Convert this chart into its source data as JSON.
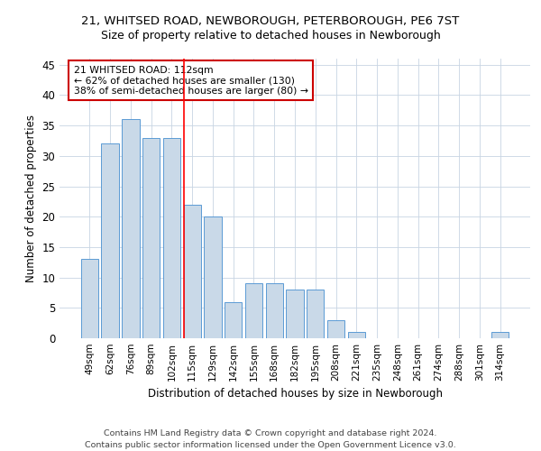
{
  "title1": "21, WHITSED ROAD, NEWBOROUGH, PETERBOROUGH, PE6 7ST",
  "title2": "Size of property relative to detached houses in Newborough",
  "xlabel": "Distribution of detached houses by size in Newborough",
  "ylabel": "Number of detached properties",
  "categories": [
    "49sqm",
    "62sqm",
    "76sqm",
    "89sqm",
    "102sqm",
    "115sqm",
    "129sqm",
    "142sqm",
    "155sqm",
    "168sqm",
    "182sqm",
    "195sqm",
    "208sqm",
    "221sqm",
    "235sqm",
    "248sqm",
    "261sqm",
    "274sqm",
    "288sqm",
    "301sqm",
    "314sqm"
  ],
  "values": [
    13,
    32,
    36,
    33,
    33,
    22,
    20,
    6,
    9,
    9,
    8,
    8,
    3,
    1,
    0,
    0,
    0,
    0,
    0,
    0,
    1
  ],
  "bar_color": "#c9d9e8",
  "bar_edge_color": "#5b9bd5",
  "vline_x": 4.575,
  "annotation_title": "21 WHITSED ROAD: 112sqm",
  "annotation_line1": "← 62% of detached houses are smaller (130)",
  "annotation_line2": "38% of semi-detached houses are larger (80) →",
  "annotation_box_color": "#cc0000",
  "ylim": [
    0,
    46
  ],
  "yticks": [
    0,
    5,
    10,
    15,
    20,
    25,
    30,
    35,
    40,
    45
  ],
  "footer1": "Contains HM Land Registry data © Crown copyright and database right 2024.",
  "footer2": "Contains public sector information licensed under the Open Government Licence v3.0.",
  "fig_width": 6.0,
  "fig_height": 5.0,
  "dpi": 100
}
